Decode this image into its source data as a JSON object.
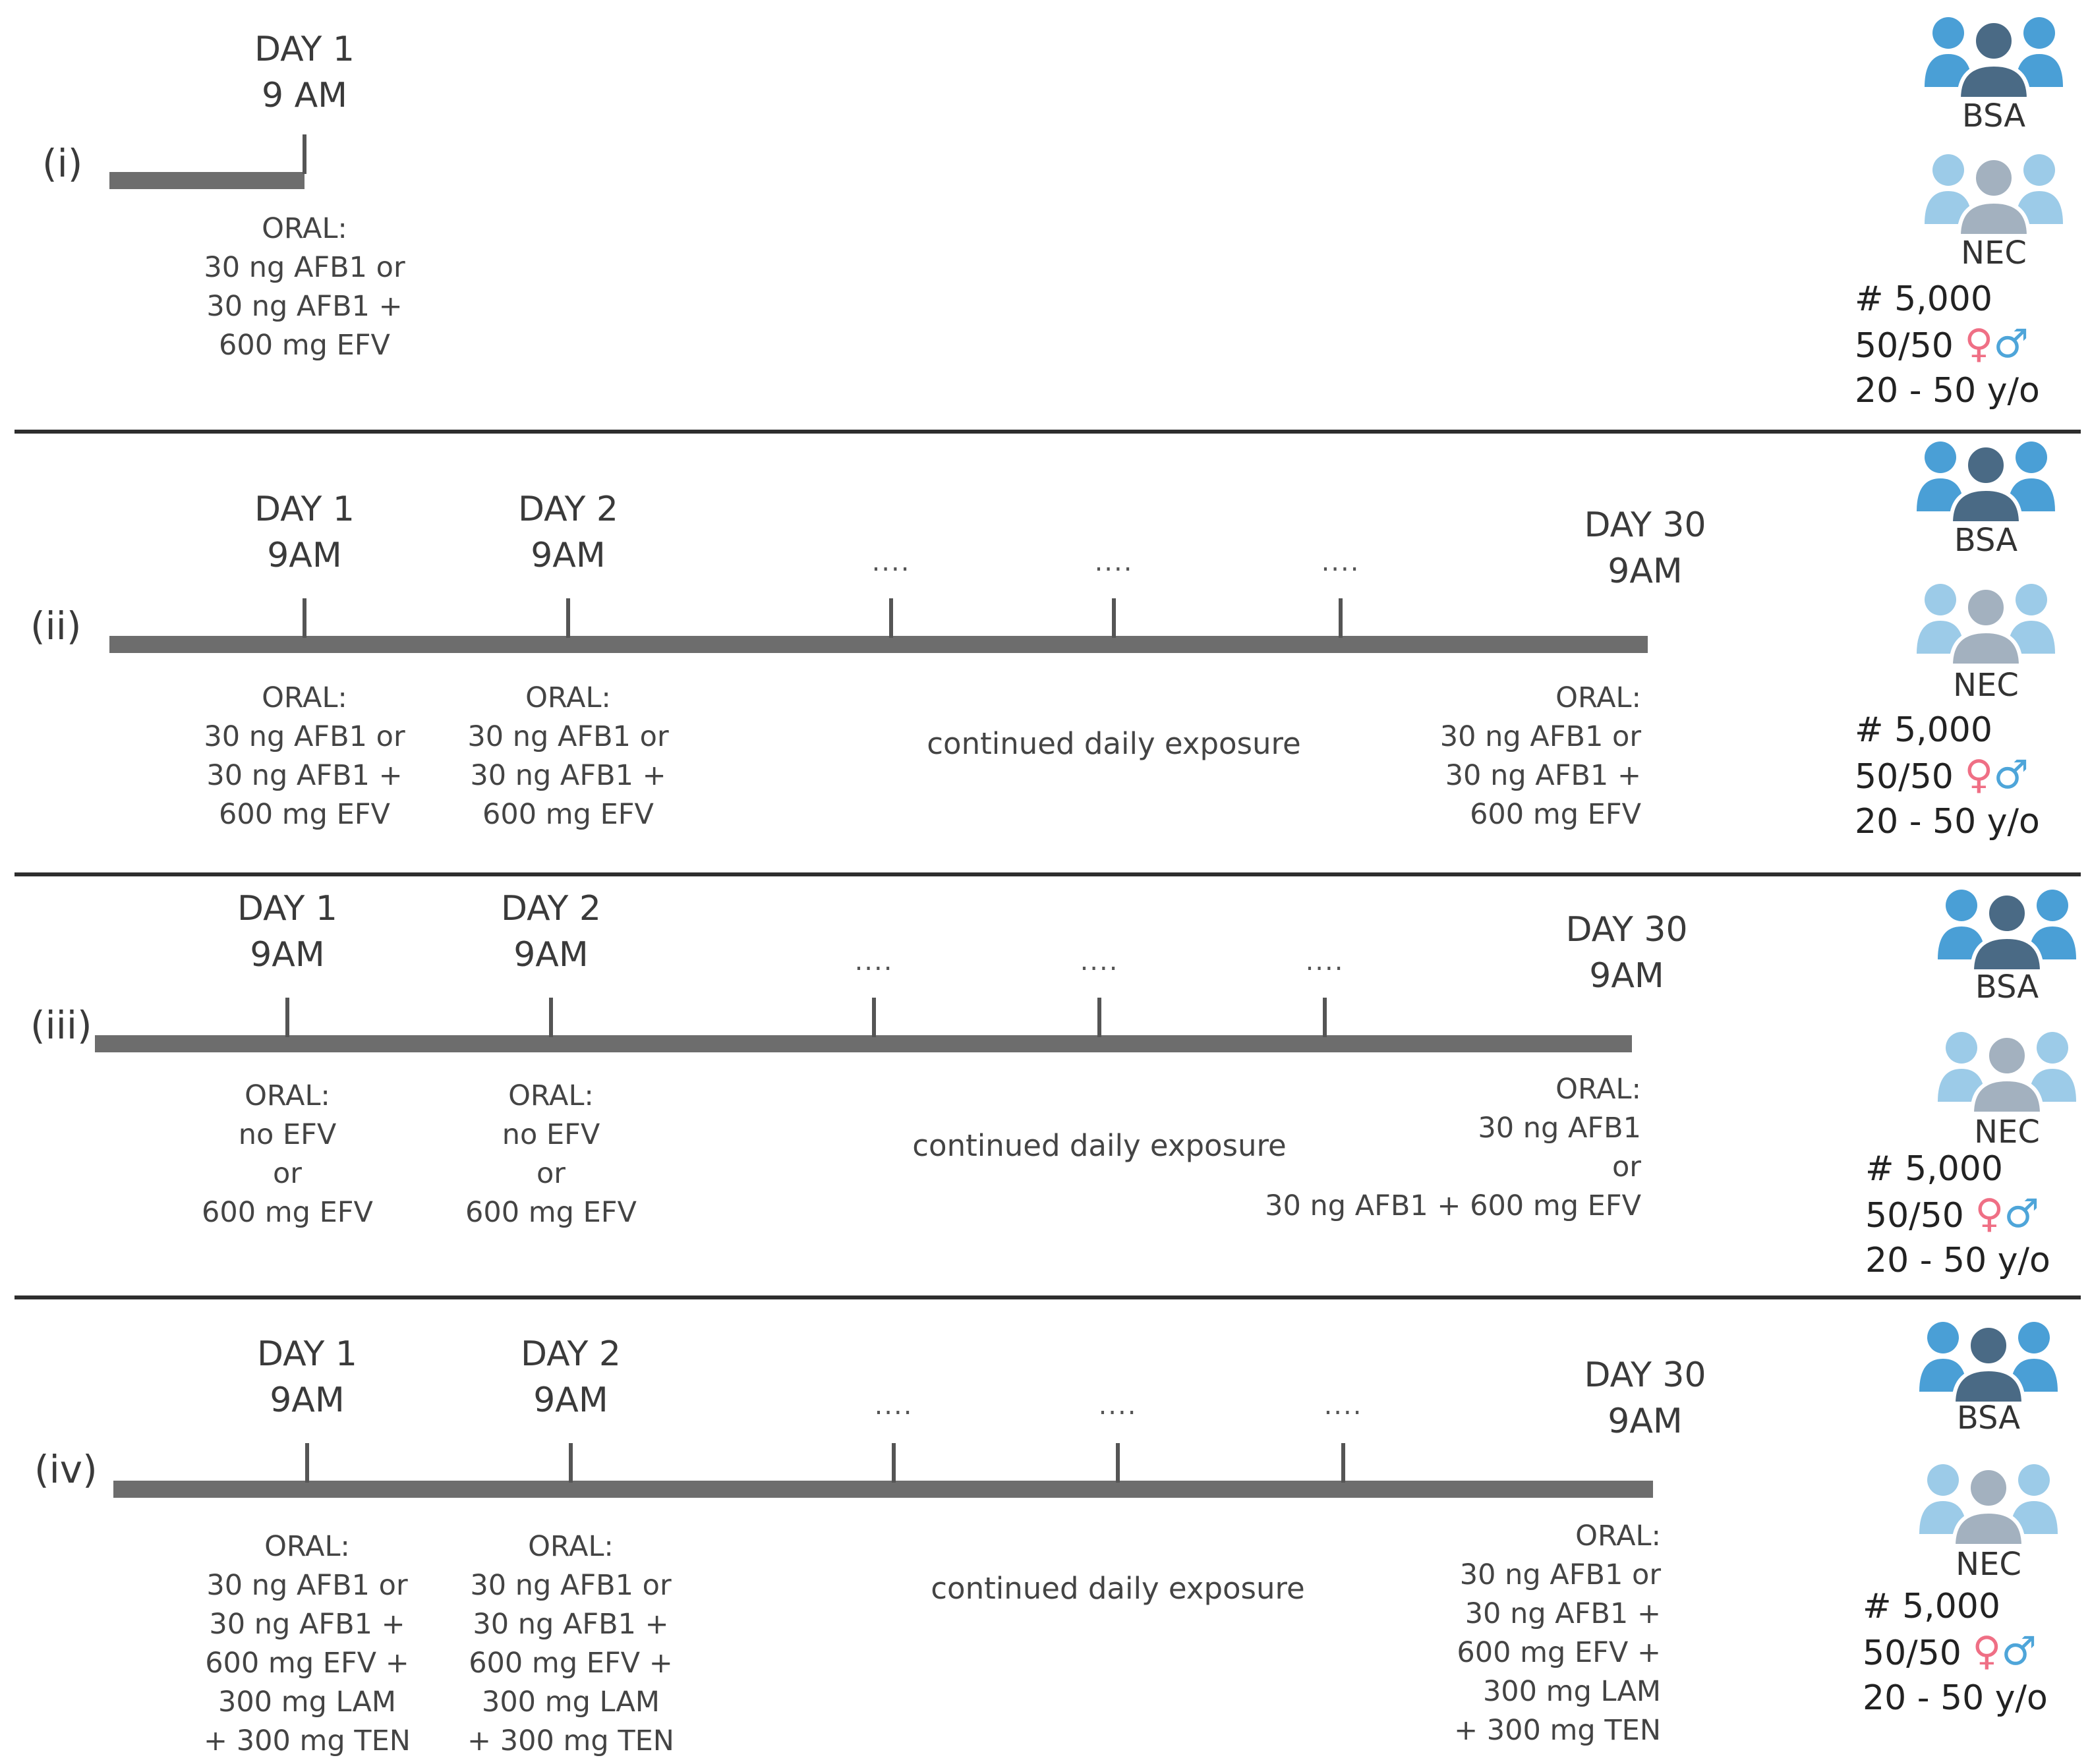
{
  "panels": [
    {
      "label": "(i)",
      "days": [
        {
          "day": "DAY 1",
          "time": "9 AM"
        }
      ],
      "doses": [
        [
          "ORAL:",
          "30 ng AFB1 or",
          "30 ng AFB1 +",
          "600 mg EFV"
        ]
      ],
      "gap_marker": "",
      "continued_text": "",
      "final_day": null,
      "final_dose": [],
      "groups": [
        "BSA",
        "NEC"
      ],
      "count": "# 5,000",
      "ratio": "50/50",
      "female_symbol": "♀",
      "male_symbol": "♂",
      "age": "20 - 50 y/o"
    },
    {
      "label": "(ii)",
      "days": [
        {
          "day": "DAY 1",
          "time": "9AM"
        },
        {
          "day": "DAY 2",
          "time": "9AM"
        }
      ],
      "doses": [
        [
          "ORAL:",
          "30 ng AFB1 or",
          "30 ng AFB1 +",
          "600 mg EFV"
        ],
        [
          "ORAL:",
          "30 ng AFB1 or",
          "30 ng AFB1 +",
          "600 mg EFV"
        ]
      ],
      "gap_marker": "....",
      "continued_text": "continued daily exposure",
      "final_day": {
        "day": "DAY 30",
        "time": "9AM"
      },
      "final_dose": [
        "ORAL:",
        "30 ng AFB1 or",
        "30 ng AFB1 +",
        "600 mg EFV"
      ],
      "groups": [
        "BSA",
        "NEC"
      ],
      "count": "# 5,000",
      "ratio": "50/50",
      "female_symbol": "♀",
      "male_symbol": "♂",
      "age": "20 - 50 y/o"
    },
    {
      "label": "(iii)",
      "days": [
        {
          "day": "DAY 1",
          "time": "9AM"
        },
        {
          "day": "DAY 2",
          "time": "9AM"
        }
      ],
      "doses": [
        [
          "ORAL:",
          "no EFV",
          "or",
          "600 mg EFV"
        ],
        [
          "ORAL:",
          "no EFV",
          "or",
          "600 mg EFV"
        ]
      ],
      "gap_marker": "....",
      "continued_text": "continued daily exposure",
      "final_day": {
        "day": "DAY 30",
        "time": "9AM"
      },
      "final_dose": [
        "ORAL:",
        "30 ng AFB1",
        "or",
        "30 ng AFB1 + 600 mg EFV"
      ],
      "groups": [
        "BSA",
        "NEC"
      ],
      "count": "# 5,000",
      "ratio": "50/50",
      "female_symbol": "♀",
      "male_symbol": "♂",
      "age": "20 - 50 y/o"
    },
    {
      "label": "(iv)",
      "days": [
        {
          "day": "DAY 1",
          "time": "9AM"
        },
        {
          "day": "DAY 2",
          "time": "9AM"
        }
      ],
      "doses": [
        [
          "ORAL:",
          "30 ng AFB1 or",
          "30 ng AFB1 +",
          "600 mg EFV +",
          "300 mg LAM",
          "+ 300 mg TEN"
        ],
        [
          "ORAL:",
          "30 ng AFB1 or",
          "30 ng AFB1 +",
          "600 mg EFV +",
          "300 mg LAM",
          "+ 300 mg TEN"
        ]
      ],
      "gap_marker": "....",
      "continued_text": "continued daily exposure",
      "final_day": {
        "day": "DAY 30",
        "time": "9AM"
      },
      "final_dose": [
        "ORAL:",
        "30 ng AFB1 or",
        "30 ng AFB1 +",
        "600 mg EFV +",
        "300 mg LAM",
        "+ 300 mg TEN"
      ],
      "groups": [
        "BSA",
        "NEC"
      ],
      "count": "# 5,000",
      "ratio": "50/50",
      "female_symbol": "♀",
      "male_symbol": "♂",
      "age": "20 - 50 y/o"
    }
  ],
  "colors": {
    "bsa_side": "#4a9fd6",
    "bsa_center": "#4a6a85",
    "nec_side": "#9ccbe8",
    "nec_center": "#a3b1bf",
    "female": "#ef6f85",
    "male": "#4ea5d9",
    "timeline": "#6d6d6d",
    "divider": "#2e2e2e"
  }
}
